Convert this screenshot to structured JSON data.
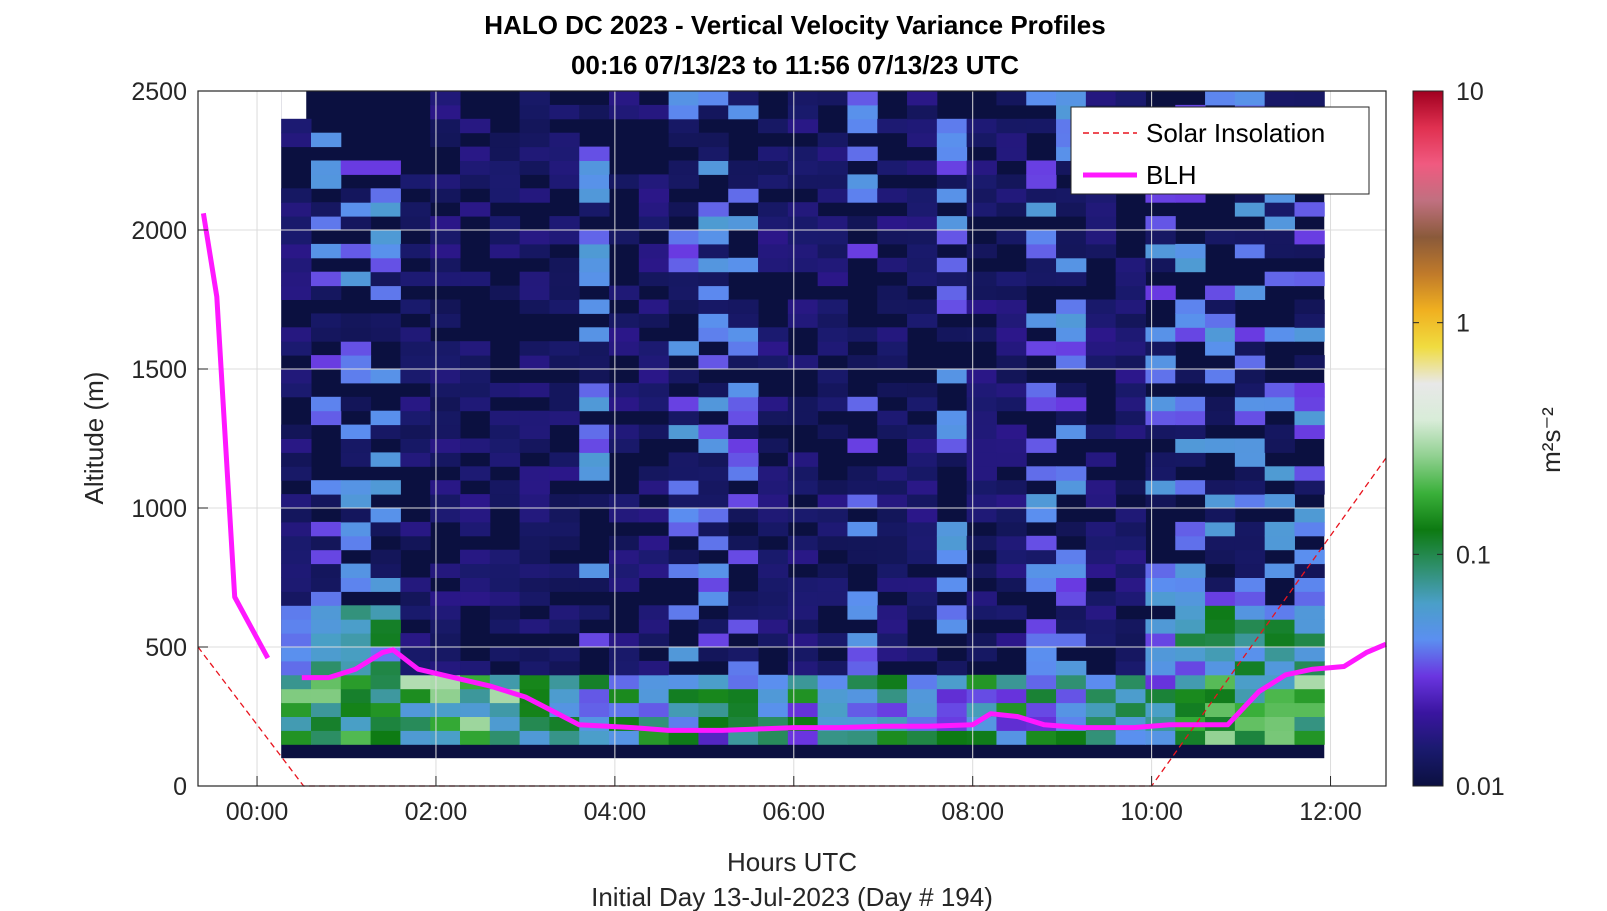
{
  "chart_data": {
    "type": "heatmap",
    "title": "HALO DC 2023 - Vertical Velocity Variance Profiles",
    "subtitle": "00:16 07/13/23 to 11:56 07/13/23  UTC",
    "xlabel": "Hours UTC",
    "ylabel": "Altitude (m)",
    "footer": "Initial Day 13-Jul-2023 (Day # 194)",
    "xlim_hours": [
      -0.66,
      12.62
    ],
    "ylim": [
      0,
      2500
    ],
    "x_ticks": [
      {
        "h": 0,
        "label": "00:00"
      },
      {
        "h": 2,
        "label": "02:00"
      },
      {
        "h": 4,
        "label": "04:00"
      },
      {
        "h": 6,
        "label": "06:00"
      },
      {
        "h": 8,
        "label": "08:00"
      },
      {
        "h": 10,
        "label": "10:00"
      },
      {
        "h": 12,
        "label": "12:00"
      }
    ],
    "y_ticks": [
      {
        "v": 0,
        "label": "0"
      },
      {
        "v": 500,
        "label": "500"
      },
      {
        "v": 1000,
        "label": "1000"
      },
      {
        "v": 1500,
        "label": "1500"
      },
      {
        "v": 2000,
        "label": "2000"
      },
      {
        "v": 2500,
        "label": "2500"
      }
    ],
    "grid": true,
    "colorbar": {
      "scale": "log",
      "range": [
        0.01,
        10
      ],
      "label": "m²s⁻²",
      "ticks": [
        {
          "v": 0.01,
          "label": "0.01"
        },
        {
          "v": 0.1,
          "label": "0.1"
        },
        {
          "v": 1,
          "label": "1"
        },
        {
          "v": 10,
          "label": "10"
        }
      ],
      "stops": [
        "#0b1040",
        "#1a1a6e",
        "#3a15a0",
        "#6a35e0",
        "#5b8ff0",
        "#4a9fc8",
        "#2e8f6a",
        "#0d7a12",
        "#3ab03a",
        "#8fd08f",
        "#d8ecd8",
        "#e8e8e8",
        "#f0dc40",
        "#f0b020",
        "#c07a2a",
        "#8a5a3a",
        "#c07080",
        "#f05a80",
        "#e03050",
        "#a00020"
      ]
    },
    "heatmap": {
      "t_start_hours": 0.27,
      "t_end_hours": 11.93,
      "columns": 35,
      "bin_m": 50,
      "bottom_m": 100,
      "top_m": 2500,
      "background_value": 0.01,
      "note_cells": "log10 variance cells listed in script"
    },
    "series": [
      {
        "name": "Solar Insolation",
        "style": "dashed",
        "color": "#e8141e",
        "x": [
          -0.66,
          0.52,
          10.0,
          12.62
        ],
        "y": [
          500,
          0,
          0,
          1180
        ]
      },
      {
        "name": "BLH",
        "style": "solid",
        "color": "#ff18ff",
        "segments": [
          {
            "x": [
              -0.6,
              -0.45,
              -0.25,
              0.12
            ],
            "y": [
              2060,
              1760,
              680,
              460
            ]
          },
          {
            "x": [
              0.5,
              0.8,
              1.1,
              1.4,
              1.52,
              1.8,
              2.2,
              2.6,
              3.0,
              3.3,
              3.6,
              4.2,
              4.6,
              5.2,
              5.6,
              6.0,
              6.5,
              7.0,
              7.5,
              8.0,
              8.2,
              8.5,
              8.8,
              9.2,
              9.8,
              10.2,
              10.5,
              10.85,
              11.2,
              11.5,
              11.8,
              12.15,
              12.4,
              12.62
            ],
            "y": [
              390,
              390,
              420,
              480,
              490,
              420,
              390,
              360,
              320,
              270,
              220,
              210,
              200,
              200,
              205,
              210,
              210,
              215,
              215,
              220,
              260,
              250,
              220,
              210,
              210,
              220,
              220,
              220,
              340,
              400,
              420,
              430,
              480,
              510
            ]
          }
        ]
      }
    ],
    "legend": {
      "position": "top-right",
      "entries": [
        "Solar Insolation",
        "BLH"
      ]
    }
  }
}
